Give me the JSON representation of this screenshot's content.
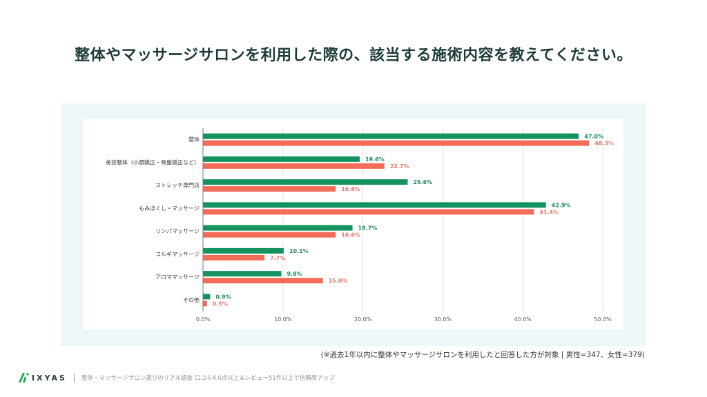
{
  "title": "整体やマッサージサロンを利用した際の、該当する施術内容を教えてください。",
  "note": "(※過去1年以内に整体やマッサージサロンを利用したと回答した方が対象 | 男性=347、女性=379)",
  "footer": {
    "brand": "IXYAS",
    "tagline": "整体・マッサージサロン選びのリアル調査 口コミ4.0点以上＆レビュー51件以上で信頼度アップ"
  },
  "colors": {
    "male": "#14935f",
    "female": "#f26c58",
    "male_label": "#1e8a5e",
    "female_label": "#e9796a"
  },
  "chart_data": {
    "type": "bar",
    "orientation": "horizontal",
    "title": "整体やマッサージサロンを利用した際の、該当する施術内容を教えてください。",
    "xlabel": "",
    "ylabel": "",
    "xlim": [
      0,
      50
    ],
    "x_ticks": [
      "0.0%",
      "10.0%",
      "20.0%",
      "30.0%",
      "40.0%",
      "50.0%"
    ],
    "grid": true,
    "legend": "none",
    "categories": [
      "整体",
      "美容整体（小顔矯正・骨盤矯正など）",
      "ストレッチ専門店",
      "もみほぐし・マッサージ",
      "リンパマッサージ",
      "コルギマッサージ",
      "アロママッサージ",
      "その他"
    ],
    "series": [
      {
        "name": "男性",
        "values": [
          47.0,
          19.6,
          25.6,
          42.9,
          18.7,
          10.1,
          9.8,
          0.9
        ],
        "labels": [
          "47.0%",
          "19.6%",
          "25.6%",
          "42.9%",
          "18.7%",
          "10.1%",
          "9.8%",
          "0.9%"
        ]
      },
      {
        "name": "女性",
        "values": [
          48.3,
          22.7,
          16.6,
          41.4,
          16.6,
          7.7,
          15.0,
          0.5
        ],
        "labels": [
          "48.3%",
          "22.7%",
          "16.6%",
          "41.4%",
          "16.6%",
          "7.7%",
          "15.0%",
          "0.5%"
        ]
      }
    ]
  }
}
